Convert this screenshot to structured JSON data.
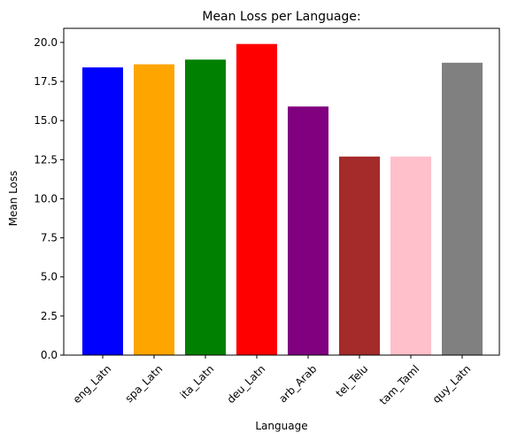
{
  "chart_data": {
    "type": "bar",
    "title": "Mean Loss per Language:",
    "xlabel": "Language",
    "ylabel": "Mean Loss",
    "categories": [
      "eng_Latn",
      "spa_Latn",
      "ita_Latn",
      "deu_Latn",
      "arb_Arab",
      "tel_Telu",
      "tam_Taml",
      "quy_Latn"
    ],
    "values": [
      18.4,
      18.6,
      18.9,
      19.9,
      15.9,
      12.7,
      12.7,
      18.7
    ],
    "colors": [
      "#0000ff",
      "#ffa500",
      "#008000",
      "#ff0000",
      "#800080",
      "#a52a2a",
      "#ffc0cb",
      "#808080"
    ],
    "ylim": [
      0,
      20.9
    ],
    "yticks": [
      0.0,
      2.5,
      5.0,
      7.5,
      10.0,
      12.5,
      15.0,
      17.5,
      20.0
    ],
    "ytick_labels": [
      "0.0",
      "2.5",
      "5.0",
      "7.5",
      "10.0",
      "12.5",
      "15.0",
      "17.5",
      "20.0"
    ],
    "grid": false,
    "legend": "none"
  }
}
